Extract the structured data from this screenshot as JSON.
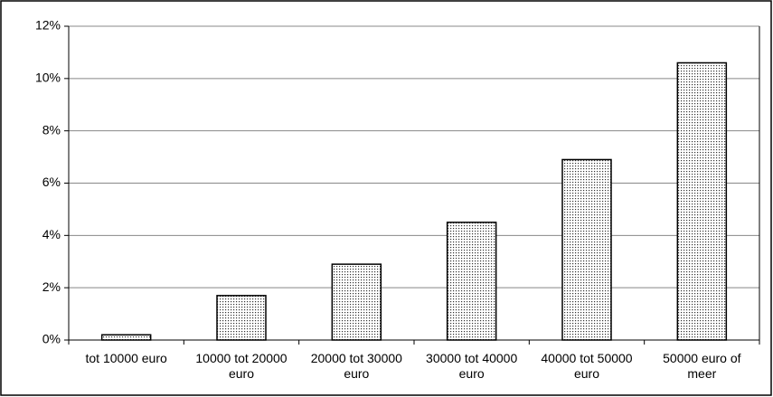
{
  "chart_data": {
    "type": "bar",
    "categories": [
      "tot 10000 euro",
      "10000 tot 20000 euro",
      "20000 tot 30000 euro",
      "30000 tot 40000 euro",
      "40000 tot 50000 euro",
      "50000 euro of meer"
    ],
    "values": [
      0.2,
      1.7,
      2.9,
      4.5,
      6.9,
      10.6
    ],
    "ylim": [
      0,
      12
    ],
    "yticks": [
      {
        "value": 0,
        "label": "0%"
      },
      {
        "value": 2,
        "label": "2%"
      },
      {
        "value": 4,
        "label": "4%"
      },
      {
        "value": 6,
        "label": "6%"
      },
      {
        "value": 8,
        "label": "8%"
      },
      {
        "value": 10,
        "label": "10%"
      },
      {
        "value": 12,
        "label": "12%"
      }
    ],
    "grid": true
  }
}
